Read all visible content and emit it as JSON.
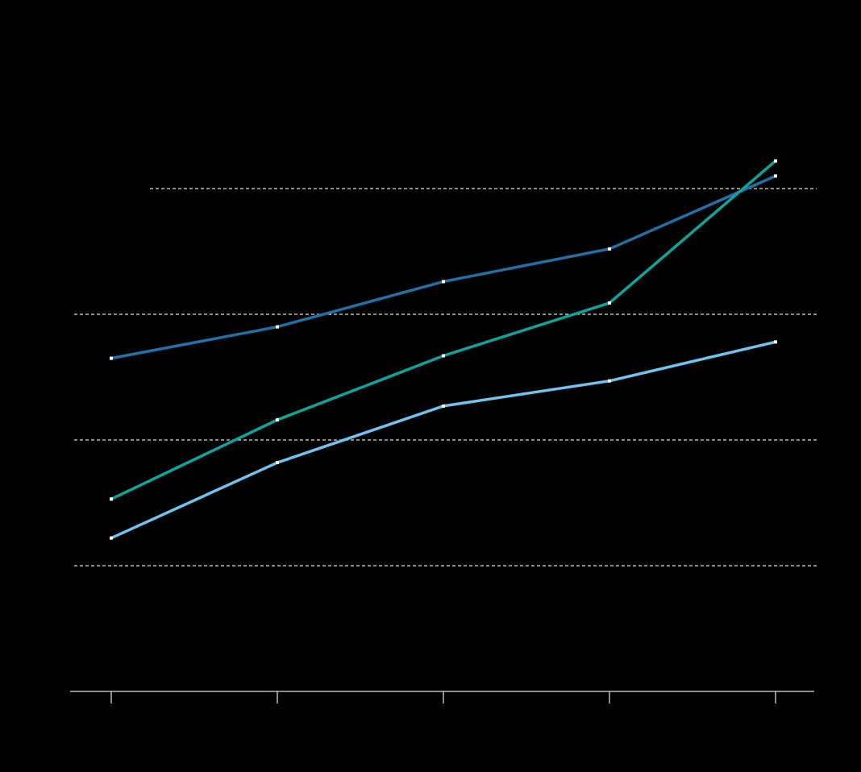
{
  "chart_data": {
    "type": "line",
    "categories": [
      null,
      null,
      null,
      null,
      null
    ],
    "series": [
      {
        "color": "#2470a6",
        "values": [
          26.5,
          29.0,
          32.6,
          35.2,
          41.0
        ]
      },
      {
        "color": "#10a39b",
        "values": [
          15.3,
          21.6,
          26.7,
          30.9,
          42.2
        ]
      },
      {
        "color": "#70c3ee",
        "values": [
          12.2,
          18.2,
          22.7,
          24.7,
          27.8
        ]
      }
    ],
    "ylim": [
      0,
      50
    ],
    "yticks": [
      0,
      10,
      20,
      30,
      40
    ],
    "grid": true,
    "marker_color": "#ffffff"
  }
}
